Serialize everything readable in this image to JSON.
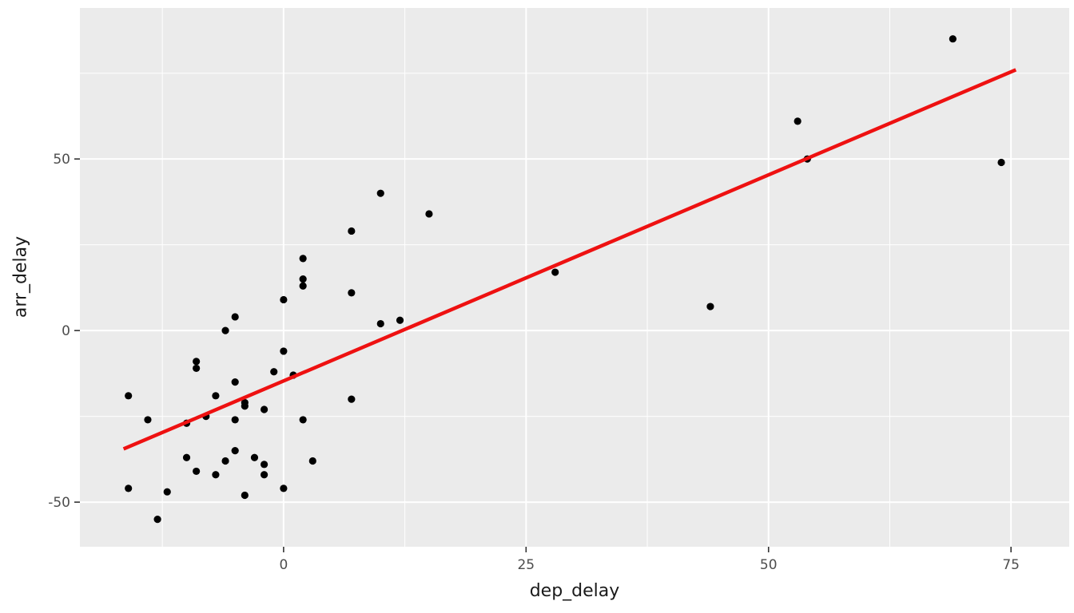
{
  "chart_data": {
    "type": "scatter",
    "title": "",
    "xlabel": "dep_delay",
    "ylabel": "arr_delay",
    "xlim": [
      -21,
      81
    ],
    "ylim": [
      -63,
      94
    ],
    "x_ticks": [
      0,
      25,
      50,
      75
    ],
    "y_ticks": [
      -50,
      0,
      50
    ],
    "x_minor_ticks": [
      -12.5,
      12.5,
      37.5,
      62.5
    ],
    "y_minor_ticks": [
      -25,
      25,
      75
    ],
    "grid": true,
    "legend": "none",
    "panel_bg": "#ebebeb",
    "grid_color": "#ffffff",
    "tick_label_color": "#4d4d4d",
    "tick_mark_color": "#333333",
    "point_color": "#000000",
    "point_radius": 4.6,
    "points": [
      [
        69,
        85
      ],
      [
        53,
        61
      ],
      [
        54,
        50
      ],
      [
        74,
        49
      ],
      [
        10,
        40
      ],
      [
        15,
        34
      ],
      [
        7,
        29
      ],
      [
        2,
        21
      ],
      [
        28,
        17
      ],
      [
        2,
        15
      ],
      [
        2,
        13
      ],
      [
        7,
        11
      ],
      [
        0,
        9
      ],
      [
        44,
        7
      ],
      [
        -5,
        4
      ],
      [
        12,
        3
      ],
      [
        10,
        2
      ],
      [
        -6,
        0
      ],
      [
        0,
        -6
      ],
      [
        -9,
        -9
      ],
      [
        -9,
        -11
      ],
      [
        -1,
        -12
      ],
      [
        1,
        -13
      ],
      [
        -5,
        -15
      ],
      [
        -16,
        -19
      ],
      [
        -7,
        -19
      ],
      [
        7,
        -20
      ],
      [
        -4,
        -21
      ],
      [
        -4,
        -22
      ],
      [
        -2,
        -23
      ],
      [
        -8,
        -25
      ],
      [
        -14,
        -26
      ],
      [
        -5,
        -26
      ],
      [
        2,
        -26
      ],
      [
        -10,
        -27
      ],
      [
        -10,
        -37
      ],
      [
        -6,
        -38
      ],
      [
        -5,
        -35
      ],
      [
        -3,
        -37
      ],
      [
        -2,
        -39
      ],
      [
        3,
        -38
      ],
      [
        -9,
        -41
      ],
      [
        -7,
        -42
      ],
      [
        -2,
        -42
      ],
      [
        -16,
        -46
      ],
      [
        -12,
        -47
      ],
      [
        -4,
        -48
      ],
      [
        0,
        -46
      ],
      [
        -13,
        -55
      ]
    ],
    "regression_line": {
      "x1": -16.5,
      "y1": -34.5,
      "x2": 75.5,
      "y2": 76,
      "color": "#ee1111",
      "width": 4.5
    }
  }
}
